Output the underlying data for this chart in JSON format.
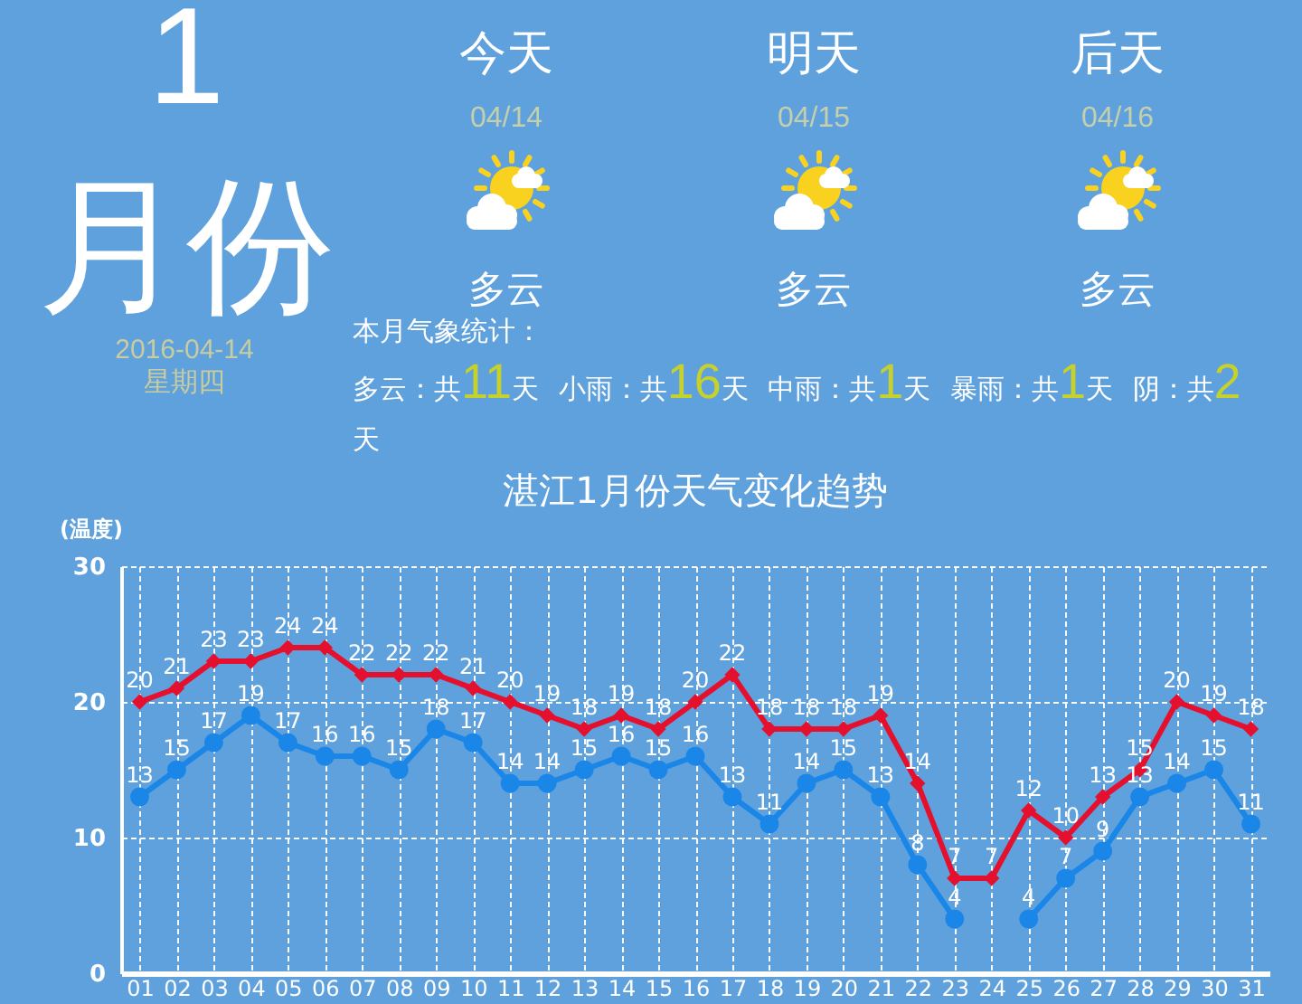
{
  "chart_data": [
    {
      "type": "other",
      "annotations": [
        "1",
        "月份",
        "2016-04-14",
        "星期四",
        "今天",
        "04/14",
        "多云",
        "明天",
        "04/15",
        "多云",
        "后天",
        "04/16",
        "多云",
        "本月气象统计：",
        "多云：共11天 小雨：共16天 中雨：共1天 暴雨：共1天 阴：共2天"
      ]
    },
    {
      "type": "line",
      "title": "湛江1月份天气变化趋势",
      "ylabel": "(温度)",
      "categories": [
        "01",
        "02",
        "03",
        "04",
        "05",
        "06",
        "07",
        "08",
        "09",
        "10",
        "11",
        "12",
        "13",
        "14",
        "15",
        "16",
        "17",
        "18",
        "19",
        "20",
        "21",
        "22",
        "23",
        "24",
        "25",
        "26",
        "27",
        "28",
        "29",
        "30",
        "31"
      ],
      "series": [
        {
          "color": "#e5102d",
          "marker": "diamond",
          "values": [
            20,
            21,
            23,
            23,
            24,
            24,
            22,
            22,
            22,
            21,
            20,
            19,
            18,
            19,
            18,
            20,
            22,
            18,
            18,
            18,
            19,
            14,
            7,
            7,
            12,
            10,
            13,
            15,
            20,
            19,
            18
          ]
        },
        {
          "color": "#1a86e8",
          "marker": "circle",
          "values": [
            13,
            15,
            17,
            19,
            17,
            16,
            16,
            15,
            18,
            17,
            14,
            14,
            15,
            16,
            15,
            16,
            13,
            11,
            14,
            15,
            13,
            8,
            4,
            null,
            4,
            7,
            9,
            13,
            14,
            15,
            11
          ]
        }
      ],
      "ylim": [
        0,
        30
      ],
      "yticks": [
        0,
        10,
        20,
        30
      ],
      "grid": true,
      "data_labels": true
    }
  ]
}
